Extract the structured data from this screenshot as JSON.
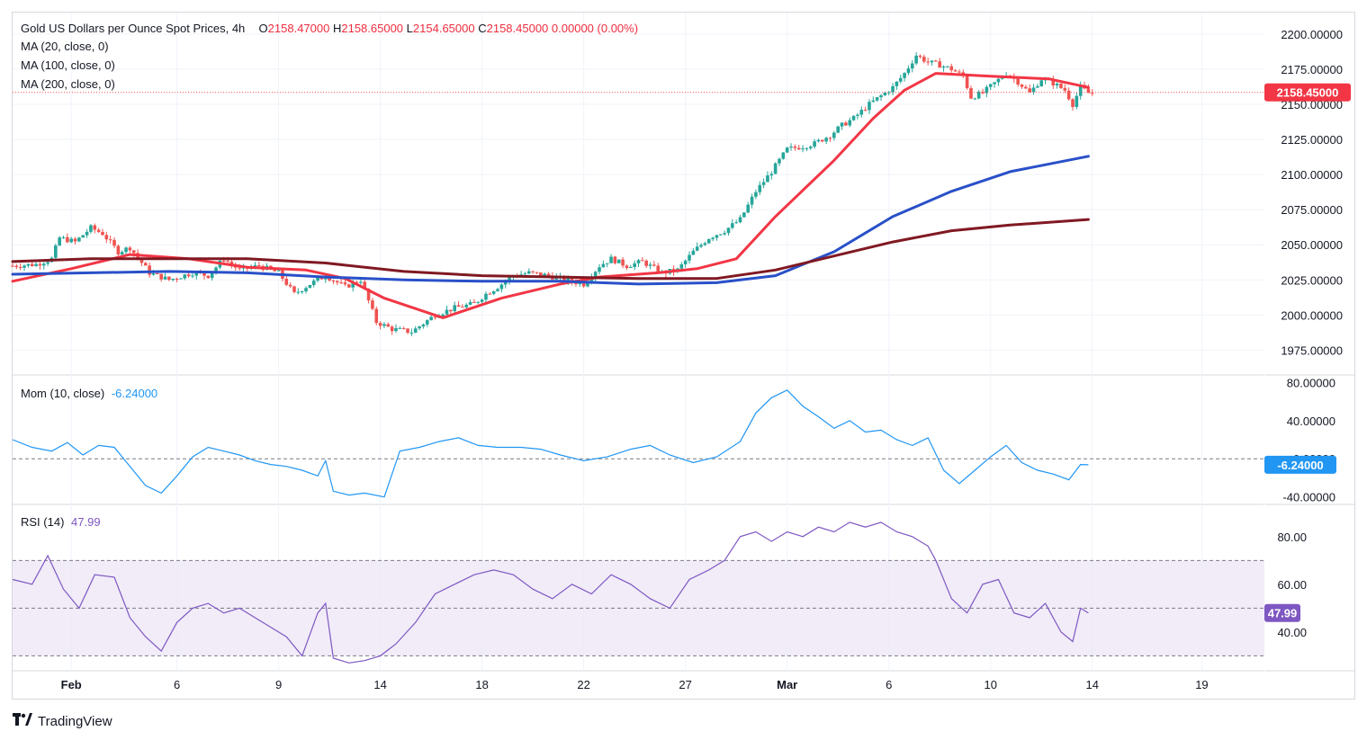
{
  "header": {
    "symbol": "Gold US Dollars per Ounce Spot Prices, 4h",
    "ohlc": {
      "open_label": "O",
      "open": "2158.47000",
      "high_label": "H",
      "high": "2158.65000",
      "low_label": "L",
      "low": "2154.65000",
      "close_label": "C",
      "close": "2158.45000",
      "change": "0.00000 (0.00%)"
    },
    "ma_labels": [
      "MA (20, close, 0)",
      "MA (100, close, 0)",
      "MA (200, close, 0)"
    ]
  },
  "momentum": {
    "label": "Mom (10, close)",
    "value": "-6.24000"
  },
  "rsi": {
    "label": "RSI (14)",
    "value": "47.99"
  },
  "price_badge": "2158.45000",
  "mom_badge": "-6.24000",
  "rsi_badge": "47.99",
  "footer": {
    "brand": "TradingView"
  },
  "colors": {
    "up": "#26a69a",
    "down": "#ef5350",
    "ma20": "#f23645",
    "ma100": "#2950c8",
    "ma200": "#801922",
    "mom": "#2196f3",
    "rsi": "#7e57c2",
    "rsi_band": "#ede7f6"
  },
  "chart_data": [
    {
      "type": "candlestick",
      "title": "Gold US Dollars per Ounce Spot Prices, 4h",
      "x_ticks": [
        "Feb",
        "6",
        "9",
        "14",
        "18",
        "22",
        "27",
        "Mar",
        "6",
        "10",
        "14",
        "19"
      ],
      "y_ticks": [
        1975,
        2000,
        2025,
        2050,
        2075,
        2100,
        2125,
        2150,
        2175,
        2200
      ],
      "ylim": [
        1965,
        2205
      ],
      "last_price": 2158.45,
      "close_path": [
        [
          0,
          2035
        ],
        [
          6,
          2036
        ],
        [
          10,
          2040
        ],
        [
          12,
          2055
        ],
        [
          16,
          2052
        ],
        [
          20,
          2062
        ],
        [
          23,
          2058
        ],
        [
          27,
          2045
        ],
        [
          30,
          2048
        ],
        [
          35,
          2030
        ],
        [
          40,
          2025
        ],
        [
          46,
          2030
        ],
        [
          50,
          2028
        ],
        [
          54,
          2040
        ],
        [
          58,
          2032
        ],
        [
          63,
          2035
        ],
        [
          68,
          2030
        ],
        [
          72,
          2015
        ],
        [
          76,
          2022
        ],
        [
          80,
          2028
        ],
        [
          85,
          2020
        ],
        [
          89,
          2025
        ],
        [
          93,
          1995
        ],
        [
          97,
          1990
        ],
        [
          102,
          1988
        ],
        [
          108,
          2000
        ],
        [
          113,
          2005
        ],
        [
          118,
          2008
        ],
        [
          121,
          2015
        ],
        [
          124,
          2020
        ],
        [
          128,
          2028
        ],
        [
          132,
          2030
        ],
        [
          137,
          2028
        ],
        [
          141,
          2025
        ],
        [
          146,
          2022
        ],
        [
          150,
          2035
        ],
        [
          153,
          2040
        ],
        [
          157,
          2035
        ],
        [
          161,
          2038
        ],
        [
          166,
          2030
        ],
        [
          170,
          2032
        ],
        [
          174,
          2045
        ],
        [
          178,
          2055
        ],
        [
          182,
          2060
        ],
        [
          186,
          2068
        ],
        [
          190,
          2088
        ],
        [
          194,
          2102
        ],
        [
          198,
          2118
        ],
        [
          202,
          2120
        ],
        [
          205,
          2122
        ],
        [
          209,
          2128
        ],
        [
          212,
          2135
        ],
        [
          215,
          2140
        ],
        [
          219,
          2150
        ],
        [
          222,
          2156
        ],
        [
          225,
          2162
        ],
        [
          228,
          2172
        ],
        [
          231,
          2185
        ],
        [
          234,
          2180
        ],
        [
          237,
          2178
        ],
        [
          240,
          2175
        ],
        [
          243,
          2170
        ],
        [
          245,
          2155
        ],
        [
          248,
          2158
        ],
        [
          251,
          2165
        ],
        [
          254,
          2172
        ],
        [
          257,
          2166
        ],
        [
          260,
          2158
        ],
        [
          263,
          2168
        ],
        [
          266,
          2165
        ],
        [
          269,
          2160
        ],
        [
          271,
          2150
        ],
        [
          273,
          2162
        ],
        [
          275,
          2158
        ]
      ],
      "series": [
        {
          "name": "MA (20, close, 0)",
          "color": "#f23645",
          "values": [
            [
              0,
              2024
            ],
            [
              15,
              2033
            ],
            [
              30,
              2043
            ],
            [
              45,
              2040
            ],
            [
              60,
              2034
            ],
            [
              75,
              2032
            ],
            [
              85,
              2026
            ],
            [
              95,
              2012
            ],
            [
              110,
              1998
            ],
            [
              125,
              2012
            ],
            [
              140,
              2022
            ],
            [
              150,
              2027
            ],
            [
              165,
              2030
            ],
            [
              175,
              2033
            ],
            [
              185,
              2040
            ],
            [
              195,
              2070
            ],
            [
              210,
              2110
            ],
            [
              220,
              2140
            ],
            [
              228,
              2160
            ],
            [
              236,
              2172
            ],
            [
              250,
              2170
            ],
            [
              265,
              2168
            ],
            [
              275,
              2162
            ]
          ]
        },
        {
          "name": "MA (100, close, 0)",
          "color": "#2950c8",
          "values": [
            [
              0,
              2029
            ],
            [
              20,
              2030
            ],
            [
              40,
              2031
            ],
            [
              60,
              2030
            ],
            [
              80,
              2027
            ],
            [
              100,
              2025
            ],
            [
              120,
              2024
            ],
            [
              140,
              2024
            ],
            [
              160,
              2022
            ],
            [
              180,
              2023
            ],
            [
              195,
              2028
            ],
            [
              210,
              2045
            ],
            [
              225,
              2070
            ],
            [
              240,
              2088
            ],
            [
              255,
              2102
            ],
            [
              275,
              2113
            ]
          ]
        },
        {
          "name": "MA (200, close, 0)",
          "color": "#801922",
          "values": [
            [
              0,
              2038
            ],
            [
              20,
              2040
            ],
            [
              40,
              2040
            ],
            [
              60,
              2040
            ],
            [
              80,
              2037
            ],
            [
              100,
              2031
            ],
            [
              120,
              2028
            ],
            [
              140,
              2027
            ],
            [
              160,
              2026
            ],
            [
              180,
              2026
            ],
            [
              195,
              2032
            ],
            [
              210,
              2042
            ],
            [
              225,
              2052
            ],
            [
              240,
              2060
            ],
            [
              255,
              2064
            ],
            [
              275,
              2068
            ]
          ]
        }
      ]
    },
    {
      "type": "line",
      "title": "Mom (10, close)",
      "y_ticks": [
        -40,
        0,
        40,
        80
      ],
      "ylim": [
        -45,
        85
      ],
      "series": [
        {
          "name": "Mom (10, close)",
          "color": "#2196f3",
          "values": [
            [
              0,
              20
            ],
            [
              5,
              12
            ],
            [
              10,
              8
            ],
            [
              14,
              17
            ],
            [
              18,
              4
            ],
            [
              22,
              14
            ],
            [
              26,
              12
            ],
            [
              30,
              -8
            ],
            [
              34,
              -28
            ],
            [
              38,
              -36
            ],
            [
              42,
              -18
            ],
            [
              46,
              2
            ],
            [
              50,
              12
            ],
            [
              54,
              8
            ],
            [
              58,
              4
            ],
            [
              62,
              -2
            ],
            [
              66,
              -6
            ],
            [
              70,
              -8
            ],
            [
              74,
              -12
            ],
            [
              78,
              -18
            ],
            [
              80,
              -2
            ],
            [
              82,
              -34
            ],
            [
              86,
              -38
            ],
            [
              90,
              -36
            ],
            [
              95,
              -40
            ],
            [
              99,
              8
            ],
            [
              104,
              12
            ],
            [
              109,
              18
            ],
            [
              114,
              22
            ],
            [
              119,
              14
            ],
            [
              124,
              12
            ],
            [
              130,
              12
            ],
            [
              135,
              10
            ],
            [
              140,
              4
            ],
            [
              146,
              -2
            ],
            [
              152,
              2
            ],
            [
              158,
              10
            ],
            [
              163,
              14
            ],
            [
              168,
              4
            ],
            [
              174,
              -4
            ],
            [
              180,
              2
            ],
            [
              186,
              18
            ],
            [
              190,
              48
            ],
            [
              194,
              64
            ],
            [
              198,
              72
            ],
            [
              202,
              55
            ],
            [
              206,
              44
            ],
            [
              210,
              32
            ],
            [
              214,
              40
            ],
            [
              218,
              28
            ],
            [
              222,
              30
            ],
            [
              226,
              20
            ],
            [
              230,
              14
            ],
            [
              234,
              22
            ],
            [
              238,
              -12
            ],
            [
              242,
              -26
            ],
            [
              246,
              -12
            ],
            [
              250,
              2
            ],
            [
              254,
              14
            ],
            [
              258,
              -4
            ],
            [
              262,
              -12
            ],
            [
              266,
              -16
            ],
            [
              270,
              -22
            ],
            [
              273,
              -6
            ],
            [
              275,
              -6.24
            ]
          ]
        }
      ]
    },
    {
      "type": "line",
      "title": "RSI (14)",
      "y_ticks": [
        40,
        60,
        80
      ],
      "ylim": [
        26,
        92
      ],
      "band": [
        30,
        70
      ],
      "midline": 50,
      "series": [
        {
          "name": "RSI (14)",
          "color": "#7e57c2",
          "values": [
            [
              0,
              62
            ],
            [
              5,
              60
            ],
            [
              9,
              72
            ],
            [
              13,
              58
            ],
            [
              17,
              50
            ],
            [
              21,
              64
            ],
            [
              26,
              63
            ],
            [
              30,
              46
            ],
            [
              34,
              38
            ],
            [
              38,
              32
            ],
            [
              42,
              44
            ],
            [
              46,
              50
            ],
            [
              50,
              52
            ],
            [
              54,
              48
            ],
            [
              58,
              50
            ],
            [
              62,
              46
            ],
            [
              66,
              42
            ],
            [
              70,
              38
            ],
            [
              74,
              30
            ],
            [
              78,
              48
            ],
            [
              80,
              52
            ],
            [
              82,
              29
            ],
            [
              86,
              27
            ],
            [
              90,
              28
            ],
            [
              94,
              30
            ],
            [
              98,
              35
            ],
            [
              103,
              44
            ],
            [
              108,
              56
            ],
            [
              113,
              60
            ],
            [
              118,
              64
            ],
            [
              123,
              66
            ],
            [
              128,
              64
            ],
            [
              133,
              58
            ],
            [
              138,
              54
            ],
            [
              143,
              60
            ],
            [
              148,
              56
            ],
            [
              153,
              64
            ],
            [
              158,
              60
            ],
            [
              163,
              54
            ],
            [
              168,
              50
            ],
            [
              173,
              62
            ],
            [
              178,
              66
            ],
            [
              182,
              70
            ],
            [
              186,
              80
            ],
            [
              190,
              82
            ],
            [
              194,
              78
            ],
            [
              198,
              82
            ],
            [
              202,
              80
            ],
            [
              206,
              84
            ],
            [
              210,
              82
            ],
            [
              214,
              86
            ],
            [
              218,
              84
            ],
            [
              222,
              86
            ],
            [
              226,
              82
            ],
            [
              230,
              80
            ],
            [
              234,
              76
            ],
            [
              236,
              70
            ],
            [
              240,
              54
            ],
            [
              244,
              48
            ],
            [
              248,
              60
            ],
            [
              252,
              62
            ],
            [
              256,
              48
            ],
            [
              260,
              46
            ],
            [
              264,
              52
            ],
            [
              268,
              40
            ],
            [
              271,
              36
            ],
            [
              273,
              50
            ],
            [
              275,
              47.99
            ]
          ]
        }
      ]
    }
  ]
}
